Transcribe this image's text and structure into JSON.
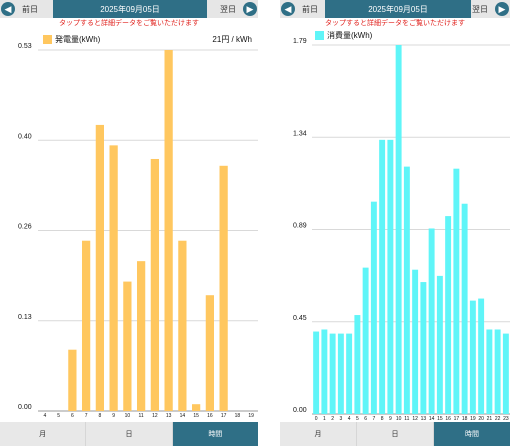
{
  "left": {
    "prev_label": "前日",
    "next_label": "翌日",
    "date": "2025年09月05日",
    "hint": "タップすると詳細データをご覧いただけます",
    "tabs": [
      "月",
      "日",
      "時間"
    ],
    "active_tab": 2,
    "unit_price": "21円 / kWh"
  },
  "right": {
    "prev_label": "前日",
    "next_label": "翌日",
    "date": "2025年09月05日",
    "hint": "タップすると詳細データをご覧いただけます",
    "tabs": [
      "月",
      "日",
      "時間"
    ],
    "active_tab": 2
  },
  "colors": {
    "accent": "#2f6f86",
    "hint_red": "#e0201c",
    "generation_bar": "#ffc75f",
    "consumption_bar": "#5ff5f8"
  },
  "icons": {
    "prev": "arrow-left-icon",
    "next": "arrow-right-icon"
  },
  "chart_data": [
    {
      "type": "bar",
      "legend": "発電量(kWh)",
      "categories": [
        "4",
        "5",
        "6",
        "7",
        "8",
        "9",
        "10",
        "11",
        "12",
        "13",
        "14",
        "15",
        "16",
        "17",
        "18",
        "19"
      ],
      "values": [
        0,
        0,
        0.09,
        0.25,
        0.42,
        0.39,
        0.19,
        0.22,
        0.37,
        0.53,
        0.25,
        0.01,
        0.17,
        0.36,
        0,
        0
      ],
      "yticks": [
        "0.00",
        "0.13",
        "0.26",
        "0.40",
        "0.53"
      ],
      "ylim": [
        0,
        0.53
      ],
      "grid": true
    },
    {
      "type": "bar",
      "legend": "消費量(kWh)",
      "categories": [
        "0",
        "1",
        "2",
        "3",
        "4",
        "5",
        "6",
        "7",
        "8",
        "9",
        "10",
        "11",
        "12",
        "13",
        "14",
        "15",
        "16",
        "17",
        "18",
        "19",
        "20",
        "21",
        "22",
        "23"
      ],
      "values": [
        0.4,
        0.41,
        0.39,
        0.39,
        0.39,
        0.48,
        0.71,
        1.03,
        1.33,
        1.33,
        1.79,
        1.2,
        0.7,
        0.64,
        0.9,
        0.67,
        0.96,
        1.19,
        1.02,
        0.55,
        0.56,
        0.41,
        0.41,
        0.39
      ],
      "yticks": [
        "0.00",
        "0.45",
        "0.89",
        "1.34",
        "1.79"
      ],
      "ylim": [
        0,
        1.79
      ],
      "grid": true
    }
  ]
}
